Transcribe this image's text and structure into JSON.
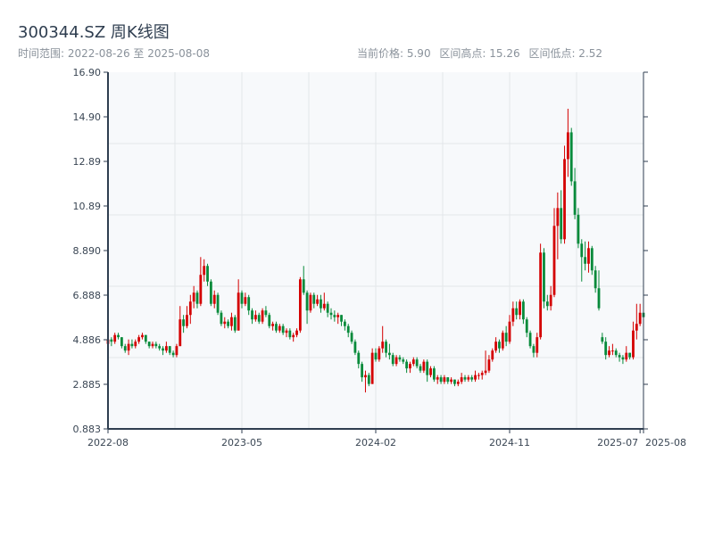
{
  "header": {
    "title": "300344.SZ 周K线图",
    "range_label": "时间范围: 2022-08-26 至 2025-08-08",
    "current_price": "当前价格: 5.90",
    "period_high": "区间高点: 15.26",
    "period_low": "区间低点: 2.52"
  },
  "chart_data": {
    "type": "candlestick",
    "title": "300344.SZ 周K线图",
    "start_date": "2022-08-26",
    "end_date": "2025-08-08",
    "current_price": 5.9,
    "period_high": 15.26,
    "period_low": 2.52,
    "ylim": [
      0.883,
      16.9
    ],
    "yticks": [
      "0.883",
      "2.885",
      "4.886",
      "6.888",
      "8.890",
      "10.89",
      "12.89",
      "14.90",
      "16.90"
    ],
    "xticks": [
      {
        "index": 0,
        "label": "2022-08"
      },
      {
        "index": 39,
        "label": "2023-05"
      },
      {
        "index": 78,
        "label": "2024-02"
      },
      {
        "index": 117,
        "label": "2024-11"
      },
      {
        "index": 155,
        "label": "2025-07"
      },
      {
        "index": 156,
        "label": "2025-08"
      }
    ],
    "grid": true,
    "colors": {
      "up": "#d40000",
      "down": "#078a3a",
      "background": "#f7f9fb",
      "axis": "#2f3e50",
      "grid": "#e3e6ea"
    },
    "ohlc_fields": [
      "open",
      "close",
      "low",
      "high"
    ],
    "ohlc": [
      [
        4.7,
        4.9,
        4.6,
        5.1
      ],
      [
        4.9,
        4.8,
        4.6,
        5.0
      ],
      [
        4.8,
        5.1,
        4.7,
        5.2
      ],
      [
        5.1,
        5.0,
        4.9,
        5.2
      ],
      [
        5.0,
        4.6,
        4.5,
        5.0
      ],
      [
        4.6,
        4.4,
        4.3,
        4.7
      ],
      [
        4.4,
        4.7,
        4.2,
        4.9
      ],
      [
        4.7,
        4.6,
        4.5,
        4.9
      ],
      [
        4.6,
        4.8,
        4.5,
        4.9
      ],
      [
        4.8,
        5.0,
        4.7,
        5.1
      ],
      [
        5.0,
        5.1,
        4.9,
        5.2
      ],
      [
        5.1,
        4.8,
        4.7,
        5.1
      ],
      [
        4.8,
        4.6,
        4.5,
        4.8
      ],
      [
        4.6,
        4.7,
        4.5,
        4.8
      ],
      [
        4.7,
        4.6,
        4.5,
        4.8
      ],
      [
        4.6,
        4.5,
        4.4,
        4.7
      ],
      [
        4.5,
        4.4,
        4.2,
        4.6
      ],
      [
        4.4,
        4.6,
        4.3,
        4.8
      ],
      [
        4.6,
        4.3,
        4.2,
        4.6
      ],
      [
        4.3,
        4.2,
        4.1,
        4.4
      ],
      [
        4.2,
        4.6,
        4.1,
        4.7
      ],
      [
        4.6,
        5.8,
        4.6,
        6.4
      ],
      [
        5.8,
        5.5,
        5.2,
        6.0
      ],
      [
        5.5,
        6.0,
        5.4,
        6.4
      ],
      [
        6.0,
        6.6,
        5.6,
        6.9
      ],
      [
        6.6,
        7.0,
        6.3,
        7.3
      ],
      [
        7.0,
        6.5,
        6.3,
        7.1
      ],
      [
        6.5,
        7.8,
        6.4,
        8.6
      ],
      [
        7.8,
        8.2,
        7.5,
        8.5
      ],
      [
        8.2,
        7.5,
        7.3,
        8.3
      ],
      [
        7.5,
        6.5,
        6.4,
        7.6
      ],
      [
        6.5,
        6.9,
        6.3,
        7.1
      ],
      [
        6.9,
        6.1,
        6.0,
        7.0
      ],
      [
        6.1,
        5.6,
        5.5,
        6.2
      ],
      [
        5.6,
        5.7,
        5.4,
        5.9
      ],
      [
        5.7,
        5.5,
        5.4,
        5.8
      ],
      [
        5.5,
        5.9,
        5.3,
        6.1
      ],
      [
        5.9,
        5.3,
        5.2,
        6.0
      ],
      [
        5.3,
        7.0,
        5.3,
        7.6
      ],
      [
        7.0,
        6.5,
        6.3,
        7.1
      ],
      [
        6.5,
        6.8,
        6.4,
        7.0
      ],
      [
        6.8,
        6.2,
        6.0,
        6.9
      ],
      [
        6.2,
        5.8,
        5.6,
        6.3
      ],
      [
        5.8,
        6.0,
        5.7,
        6.2
      ],
      [
        6.0,
        5.7,
        5.6,
        6.1
      ],
      [
        5.7,
        6.2,
        5.6,
        6.3
      ],
      [
        6.2,
        6.0,
        5.9,
        6.4
      ],
      [
        6.0,
        5.5,
        5.4,
        6.1
      ],
      [
        5.5,
        5.6,
        5.3,
        5.7
      ],
      [
        5.6,
        5.3,
        5.2,
        5.7
      ],
      [
        5.3,
        5.5,
        5.2,
        5.6
      ],
      [
        5.5,
        5.2,
        5.1,
        5.6
      ],
      [
        5.2,
        5.3,
        5.0,
        5.4
      ],
      [
        5.3,
        5.0,
        4.9,
        5.4
      ],
      [
        5.0,
        5.1,
        4.8,
        5.2
      ],
      [
        5.1,
        5.3,
        5.0,
        5.4
      ],
      [
        5.3,
        7.6,
        5.2,
        7.7
      ],
      [
        7.6,
        7.0,
        6.9,
        8.2
      ],
      [
        7.0,
        6.2,
        5.6,
        7.1
      ],
      [
        6.2,
        6.9,
        6.1,
        7.0
      ],
      [
        6.9,
        6.5,
        6.3,
        7.0
      ],
      [
        6.5,
        6.7,
        6.4,
        6.9
      ],
      [
        6.7,
        6.3,
        6.1,
        6.9
      ],
      [
        6.3,
        6.5,
        6.2,
        7.0
      ],
      [
        6.5,
        6.1,
        5.9,
        6.6
      ],
      [
        6.1,
        6.0,
        5.8,
        6.3
      ],
      [
        6.0,
        5.9,
        5.7,
        6.2
      ],
      [
        5.9,
        6.0,
        5.6,
        6.1
      ],
      [
        6.0,
        5.7,
        5.5,
        6.0
      ],
      [
        5.7,
        5.5,
        5.3,
        5.8
      ],
      [
        5.5,
        5.2,
        5.0,
        5.6
      ],
      [
        5.2,
        4.8,
        4.7,
        5.3
      ],
      [
        4.8,
        4.3,
        4.2,
        4.9
      ],
      [
        4.3,
        3.8,
        3.6,
        4.4
      ],
      [
        3.8,
        3.2,
        3.0,
        3.9
      ],
      [
        3.2,
        3.3,
        2.52,
        3.5
      ],
      [
        3.3,
        2.9,
        2.8,
        3.4
      ],
      [
        2.9,
        4.3,
        2.9,
        4.5
      ],
      [
        4.3,
        4.0,
        3.9,
        4.5
      ],
      [
        4.0,
        4.5,
        3.9,
        4.6
      ],
      [
        4.5,
        4.8,
        4.3,
        5.5
      ],
      [
        4.8,
        4.3,
        4.1,
        4.9
      ],
      [
        4.3,
        4.2,
        4.0,
        4.7
      ],
      [
        4.2,
        3.8,
        3.7,
        4.3
      ],
      [
        3.8,
        4.1,
        3.7,
        4.2
      ],
      [
        4.1,
        4.0,
        3.9,
        4.2
      ],
      [
        4.0,
        3.9,
        3.8,
        4.1
      ],
      [
        3.9,
        3.6,
        3.4,
        4.0
      ],
      [
        3.6,
        3.8,
        3.4,
        3.9
      ],
      [
        3.8,
        4.0,
        3.7,
        4.1
      ],
      [
        4.0,
        3.7,
        3.6,
        4.1
      ],
      [
        3.7,
        3.5,
        3.4,
        3.8
      ],
      [
        3.5,
        3.9,
        3.4,
        4.0
      ],
      [
        3.9,
        3.3,
        3.0,
        4.0
      ],
      [
        3.3,
        3.6,
        3.2,
        3.7
      ],
      [
        3.6,
        3.1,
        3.0,
        3.7
      ],
      [
        3.1,
        3.2,
        2.9,
        3.3
      ],
      [
        3.2,
        3.0,
        2.9,
        3.3
      ],
      [
        3.0,
        3.2,
        2.9,
        3.3
      ],
      [
        3.2,
        3.0,
        2.9,
        3.2
      ],
      [
        3.0,
        3.1,
        2.9,
        3.2
      ],
      [
        3.1,
        2.9,
        2.8,
        3.1
      ],
      [
        2.9,
        3.0,
        2.8,
        3.1
      ],
      [
        3.0,
        3.2,
        2.9,
        3.4
      ],
      [
        3.2,
        3.1,
        3.0,
        3.3
      ],
      [
        3.1,
        3.2,
        3.0,
        3.3
      ],
      [
        3.2,
        3.1,
        3.0,
        3.3
      ],
      [
        3.1,
        3.3,
        3.0,
        3.5
      ],
      [
        3.3,
        3.3,
        3.1,
        3.4
      ],
      [
        3.3,
        3.4,
        3.1,
        3.5
      ],
      [
        3.4,
        3.5,
        3.3,
        4.4
      ],
      [
        3.5,
        4.0,
        3.4,
        4.2
      ],
      [
        4.0,
        4.4,
        3.9,
        4.5
      ],
      [
        4.4,
        4.8,
        4.3,
        5.0
      ],
      [
        4.8,
        4.5,
        4.3,
        4.9
      ],
      [
        4.5,
        5.2,
        4.4,
        5.3
      ],
      [
        5.2,
        4.8,
        4.6,
        5.5
      ],
      [
        4.8,
        5.7,
        4.7,
        6.0
      ],
      [
        5.7,
        6.3,
        5.5,
        6.6
      ],
      [
        6.3,
        6.0,
        5.8,
        6.6
      ],
      [
        6.0,
        6.6,
        5.8,
        6.7
      ],
      [
        6.6,
        5.8,
        5.6,
        6.7
      ],
      [
        5.8,
        5.2,
        5.0,
        5.9
      ],
      [
        5.2,
        4.6,
        4.5,
        5.3
      ],
      [
        4.6,
        4.3,
        4.1,
        4.7
      ],
      [
        4.3,
        5.0,
        4.1,
        5.2
      ],
      [
        5.0,
        8.8,
        4.9,
        9.2
      ],
      [
        8.8,
        6.6,
        6.3,
        9.0
      ],
      [
        6.6,
        6.4,
        6.2,
        6.9
      ],
      [
        6.4,
        6.9,
        6.2,
        7.3
      ],
      [
        6.9,
        10.0,
        6.8,
        10.8
      ],
      [
        10.0,
        10.8,
        8.5,
        11.5
      ],
      [
        10.8,
        9.4,
        9.2,
        11.6
      ],
      [
        9.4,
        13.0,
        9.2,
        13.6
      ],
      [
        13.0,
        14.2,
        12.2,
        15.26
      ],
      [
        14.2,
        12.0,
        11.8,
        14.4
      ],
      [
        12.0,
        10.5,
        10.3,
        12.6
      ],
      [
        10.5,
        9.2,
        9.0,
        10.8
      ],
      [
        9.2,
        8.6,
        7.5,
        9.4
      ],
      [
        8.6,
        8.3,
        8.0,
        9.3
      ],
      [
        8.3,
        9.0,
        7.9,
        9.3
      ],
      [
        9.0,
        8.0,
        7.8,
        9.1
      ],
      [
        8.0,
        7.2,
        7.0,
        8.2
      ],
      [
        7.2,
        6.3,
        6.2,
        8.0
      ],
      [
        5.0,
        4.8,
        4.7,
        5.2
      ],
      [
        4.8,
        4.2,
        4.0,
        5.0
      ],
      [
        4.2,
        4.4,
        4.1,
        4.6
      ],
      [
        4.4,
        4.4,
        4.2,
        4.7
      ],
      [
        4.4,
        4.2,
        4.1,
        4.5
      ],
      [
        4.2,
        4.1,
        3.9,
        4.3
      ],
      [
        4.1,
        4.0,
        3.8,
        4.2
      ],
      [
        4.0,
        4.3,
        3.9,
        4.6
      ],
      [
        4.3,
        4.1,
        4.0,
        4.3
      ],
      [
        4.1,
        5.3,
        4.0,
        5.7
      ],
      [
        5.3,
        5.6,
        4.9,
        6.5
      ],
      [
        5.6,
        6.1,
        5.5,
        6.5
      ],
      [
        6.1,
        5.9,
        5.8,
        6.5
      ]
    ]
  }
}
